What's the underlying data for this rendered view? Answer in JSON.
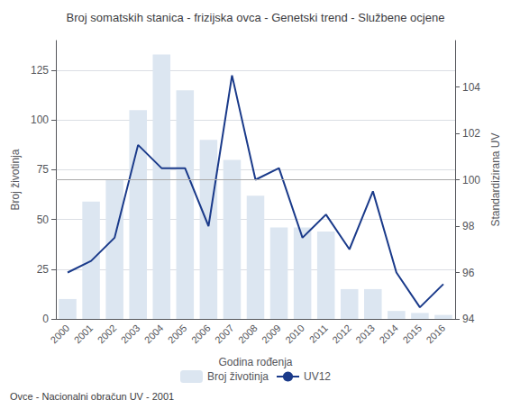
{
  "chart_data": {
    "type": "bar",
    "title": "Broj somatskih stanica - frizijska ovca - Genetski trend - Službene ocjene",
    "xlabel": "Godina rođenja",
    "ylabel": "Broj životinja",
    "y2label": "Standardizirana UV",
    "footnote": "Ovce - Nacionalni obračun UV - 2001",
    "categories": [
      "2000",
      "2001",
      "2002",
      "2003",
      "2004",
      "2005",
      "2006",
      "2007",
      "2008",
      "2009",
      "2010",
      "2011",
      "2012",
      "2013",
      "2014",
      "2015",
      "2016"
    ],
    "series": [
      {
        "name": "Broj životinja",
        "type": "bar",
        "color": "#dce6f1",
        "values": [
          10,
          59,
          70,
          105,
          133,
          115,
          90,
          80,
          62,
          46,
          46,
          44,
          15,
          15,
          4,
          3,
          2
        ]
      },
      {
        "name": "UV12",
        "type": "line",
        "color": "#1a3a8a",
        "axis": "y2",
        "values": [
          96.0,
          96.5,
          97.5,
          101.5,
          100.5,
          100.5,
          98.0,
          104.5,
          100.0,
          100.5,
          97.5,
          98.5,
          97.0,
          99.5,
          96.0,
          94.5,
          95.5
        ]
      }
    ],
    "ylim": [
      0,
      140
    ],
    "yticks": [
      0,
      25,
      50,
      75,
      100,
      125
    ],
    "y2lim": [
      94,
      106
    ],
    "y2ticks": [
      94,
      96,
      98,
      100,
      102,
      104
    ],
    "hlines": [
      {
        "y": 70,
        "color": "#aaaaaa"
      }
    ],
    "grid": true,
    "legend": "bottom"
  }
}
